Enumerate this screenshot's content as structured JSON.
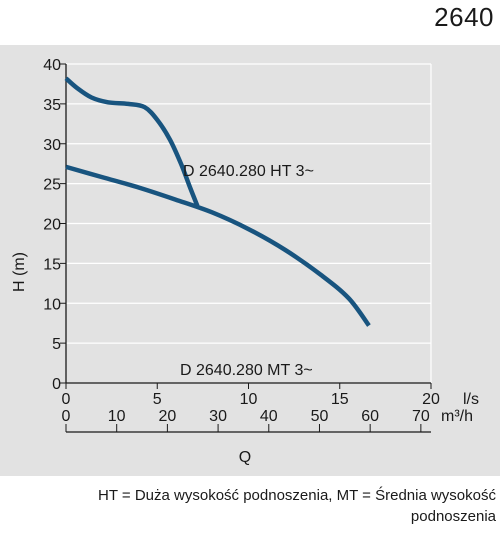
{
  "header": {
    "model_number": "2640"
  },
  "footnote": {
    "line1": "HT = Duża wysokość podnoszenia, MT = Średnia wysokość",
    "line2": "podnoszenia"
  },
  "colors": {
    "curve": "#18547f",
    "panel": "#e2e2e2",
    "axis": "#1a1a1a",
    "grid": "#ffffff"
  },
  "chart_data": {
    "type": "line",
    "ylabel": "H (m)",
    "xlabel": "Q",
    "ylim": [
      0,
      40
    ],
    "yticks": [
      0,
      5,
      10,
      15,
      20,
      25,
      30,
      35,
      40
    ],
    "grid": true,
    "x_axis_primary": {
      "unit": "l/s",
      "lim": [
        0,
        20
      ],
      "ticks": [
        0,
        5,
        10,
        15,
        20
      ]
    },
    "x_axis_secondary": {
      "unit": "m³/h",
      "lim": [
        0,
        72
      ],
      "ticks": [
        0,
        10,
        20,
        30,
        40,
        50,
        60,
        70
      ]
    },
    "series": [
      {
        "name": "D 2640.280 HT 3~",
        "x_units": "l/s",
        "points": [
          [
            0,
            38.2
          ],
          [
            0.6,
            37.0
          ],
          [
            1.4,
            35.8
          ],
          [
            2.3,
            35.2
          ],
          [
            3.4,
            35.0
          ],
          [
            4.3,
            34.6
          ],
          [
            5.0,
            33.0
          ],
          [
            5.7,
            30.5
          ],
          [
            6.3,
            27.5
          ],
          [
            6.8,
            24.5
          ],
          [
            7.2,
            22.2
          ]
        ]
      },
      {
        "name": "D 2640.280 MT 3~",
        "x_units": "l/s",
        "points": [
          [
            0,
            27.1
          ],
          [
            2,
            25.8
          ],
          [
            4,
            24.5
          ],
          [
            6,
            23.0
          ],
          [
            8,
            21.4
          ],
          [
            10,
            19.3
          ],
          [
            12,
            16.7
          ],
          [
            14,
            13.5
          ],
          [
            15.5,
            10.6
          ],
          [
            16.6,
            7.2
          ]
        ]
      }
    ]
  }
}
